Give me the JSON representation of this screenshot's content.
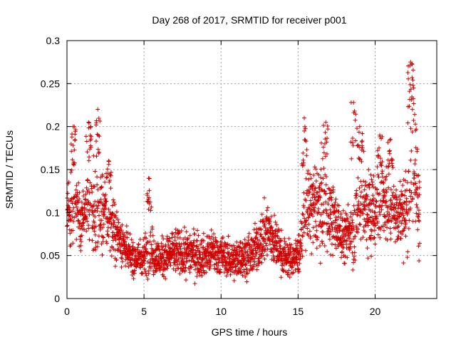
{
  "chart_data": {
    "type": "scatter",
    "title": "Day 268 of 2017, SRMTID for receiver p001",
    "xlabel": "GPS time / hours",
    "ylabel": "SRMTID / TECUs",
    "xlim": [
      0,
      24
    ],
    "ylim": [
      0,
      0.3
    ],
    "x_ticks": [
      0,
      5,
      10,
      15,
      20
    ],
    "x_tick_labels": [
      "0",
      "5",
      "10",
      "15",
      "20"
    ],
    "y_ticks": [
      0,
      0.05,
      0.1,
      0.15,
      0.2,
      0.25,
      0.3
    ],
    "y_tick_labels": [
      "0",
      "0.05",
      "0.1",
      "0.15",
      "0.2",
      "0.25",
      "0.3"
    ],
    "grid": true,
    "marker": "plus",
    "color": "#d00000",
    "series": [
      {
        "name": "SRMTID",
        "envelope_hours": [
          0,
          0.5,
          1,
          1.5,
          2,
          2.5,
          3,
          3.5,
          4,
          4.5,
          5,
          5.5,
          6,
          6.5,
          7,
          7.5,
          8,
          8.5,
          9,
          9.5,
          10,
          10.5,
          11,
          11.5,
          12,
          12.5,
          13,
          13.5,
          14,
          14.5,
          15,
          15.5,
          16,
          16.5,
          17,
          17.5,
          18,
          18.5,
          19,
          19.5,
          20,
          20.5,
          21,
          21.5,
          22,
          22.5,
          22.9
        ],
        "center_values": [
          0.1,
          0.1,
          0.095,
          0.1,
          0.105,
          0.095,
          0.08,
          0.07,
          0.05,
          0.045,
          0.05,
          0.055,
          0.045,
          0.05,
          0.055,
          0.05,
          0.055,
          0.05,
          0.05,
          0.055,
          0.05,
          0.045,
          0.045,
          0.05,
          0.05,
          0.065,
          0.08,
          0.065,
          0.05,
          0.045,
          0.05,
          0.1,
          0.105,
          0.11,
          0.1,
          0.085,
          0.07,
          0.08,
          0.11,
          0.1,
          0.105,
          0.11,
          0.105,
          0.1,
          0.1,
          0.15,
          0.1
        ],
        "spread_values": [
          0.04,
          0.04,
          0.035,
          0.045,
          0.05,
          0.04,
          0.03,
          0.025,
          0.018,
          0.018,
          0.02,
          0.025,
          0.02,
          0.02,
          0.025,
          0.022,
          0.025,
          0.022,
          0.02,
          0.022,
          0.02,
          0.018,
          0.02,
          0.02,
          0.022,
          0.025,
          0.035,
          0.025,
          0.02,
          0.018,
          0.02,
          0.04,
          0.045,
          0.045,
          0.04,
          0.03,
          0.025,
          0.035,
          0.045,
          0.045,
          0.045,
          0.045,
          0.04,
          0.035,
          0.04,
          0.06,
          0.05
        ],
        "peaks": [
          {
            "x": 0.4,
            "y": 0.2
          },
          {
            "x": 1.4,
            "y": 0.205
          },
          {
            "x": 2.0,
            "y": 0.22
          },
          {
            "x": 2.7,
            "y": 0.16
          },
          {
            "x": 5.3,
            "y": 0.14
          },
          {
            "x": 15.4,
            "y": 0.21
          },
          {
            "x": 16.8,
            "y": 0.205
          },
          {
            "x": 18.6,
            "y": 0.228
          },
          {
            "x": 19.0,
            "y": 0.2
          },
          {
            "x": 20.3,
            "y": 0.19
          },
          {
            "x": 21.0,
            "y": 0.185
          },
          {
            "x": 22.3,
            "y": 0.275
          },
          {
            "x": 22.5,
            "y": 0.245
          }
        ],
        "sample_count": 2600
      }
    ]
  }
}
